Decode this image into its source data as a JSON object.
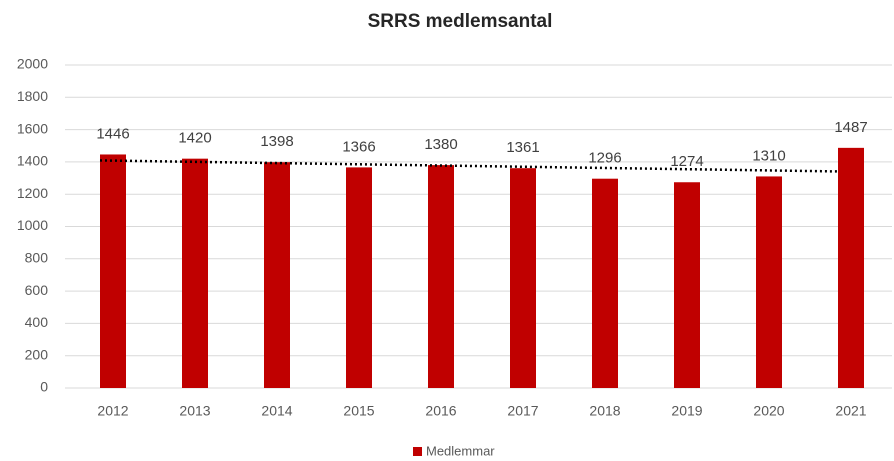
{
  "chart_data": {
    "type": "bar",
    "title": "SRRS medlemsantal",
    "categories": [
      "2012",
      "2013",
      "2014",
      "2015",
      "2016",
      "2017",
      "2018",
      "2019",
      "2020",
      "2021"
    ],
    "series": [
      {
        "name": "Medlemmar",
        "color": "#c00000",
        "values": [
          1446,
          1420,
          1398,
          1366,
          1380,
          1361,
          1296,
          1274,
          1310,
          1487
        ]
      }
    ],
    "ylim": [
      0,
      2000
    ],
    "yticks": [
      0,
      200,
      400,
      600,
      800,
      1000,
      1200,
      1400,
      1600,
      1800,
      2000
    ],
    "grid": true,
    "trendline": "linear",
    "legend": "bottom",
    "data_labels": true
  }
}
